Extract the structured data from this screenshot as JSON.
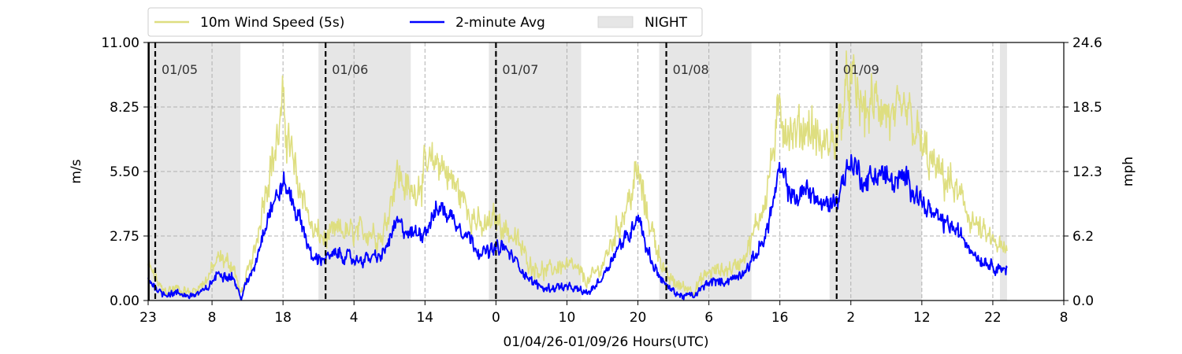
{
  "chart_data": {
    "type": "line",
    "title": "",
    "xlabel": "01/04/26-01/09/26  Hours(UTC)",
    "ylabel_left": "m/s",
    "ylabel_right": "mph",
    "ylim": [
      0,
      11
    ],
    "y_ticks_left": [
      "0.00",
      "2.75",
      "5.50",
      "8.25",
      "11.00"
    ],
    "y_ticks_right": [
      "0.0",
      "6.2",
      "12.3",
      "18.5",
      "24.6"
    ],
    "x_start": "01/04 23:00 UTC",
    "x_end": "01/10 08:00 UTC",
    "x_ticks": [
      {
        "label": "23",
        "time": "01/04 23:00"
      },
      {
        "label": "8",
        "time": "01/05 08:00"
      },
      {
        "label": "18",
        "time": "01/05 18:00"
      },
      {
        "label": "4",
        "time": "01/06 04:00"
      },
      {
        "label": "14",
        "time": "01/06 14:00"
      },
      {
        "label": "0",
        "time": "01/07 00:00"
      },
      {
        "label": "10",
        "time": "01/07 10:00"
      },
      {
        "label": "20",
        "time": "01/07 20:00"
      },
      {
        "label": "6",
        "time": "01/08 06:00"
      },
      {
        "label": "16",
        "time": "01/08 16:00"
      },
      {
        "label": "2",
        "time": "01/09 02:00"
      },
      {
        "label": "12",
        "time": "01/09 12:00"
      },
      {
        "label": "22",
        "time": "01/09 22:00"
      },
      {
        "label": "8",
        "time": "01/10 08:00"
      }
    ],
    "grid": true,
    "legend_position": "top",
    "legend": [
      {
        "label": "10m Wind Speed (5s)",
        "kind": "line",
        "color": "#dede80"
      },
      {
        "label": "2-minute Avg",
        "kind": "line",
        "color": "#0000ff"
      },
      {
        "label": "NIGHT",
        "kind": "patch",
        "color": "#e6e6e6"
      }
    ],
    "night_periods": [
      {
        "start": "01/04 23:00",
        "end": "01/05 12:00"
      },
      {
        "start": "01/05 23:00",
        "end": "01/06 12:00"
      },
      {
        "start": "01/06 23:00",
        "end": "01/07 12:00"
      },
      {
        "start": "01/07 23:00",
        "end": "01/08 12:00"
      },
      {
        "start": "01/08 23:00",
        "end": "01/09 12:00"
      },
      {
        "start": "01/09 23:00",
        "end": "01/10 00:00"
      }
    ],
    "day_markers": [
      {
        "label": "01/05",
        "time": "01/05 00:00"
      },
      {
        "label": "01/06",
        "time": "01/06 00:00"
      },
      {
        "label": "01/07",
        "time": "01/07 00:00"
      },
      {
        "label": "01/08",
        "time": "01/08 00:00"
      },
      {
        "label": "01/09",
        "time": "01/09 00:00"
      }
    ],
    "series": [
      {
        "name": "10m Wind Speed (5s)",
        "color": "#dede80",
        "points": [
          [
            "01/04 23:00",
            1.5
          ],
          [
            "01/05 01:00",
            0.4
          ],
          [
            "01/05 03:00",
            0.5
          ],
          [
            "01/05 05:00",
            0.3
          ],
          [
            "01/05 07:00",
            0.8
          ],
          [
            "01/05 09:00",
            1.8
          ],
          [
            "01/05 11:00",
            1.5
          ],
          [
            "01/05 12:00",
            0.2
          ],
          [
            "01/05 14:00",
            2.0
          ],
          [
            "01/05 15:00",
            4.0
          ],
          [
            "01/05 16:00",
            5.5
          ],
          [
            "01/05 17:00",
            6.5
          ],
          [
            "01/05 18:00",
            8.2
          ],
          [
            "01/05 19:00",
            6.5
          ],
          [
            "01/05 20:00",
            5.0
          ],
          [
            "01/05 21:00",
            4.5
          ],
          [
            "01/05 22:00",
            3.0
          ],
          [
            "01/06 00:00",
            2.6
          ],
          [
            "01/06 02:00",
            3.0
          ],
          [
            "01/06 04:00",
            2.8
          ],
          [
            "01/06 06:00",
            3.0
          ],
          [
            "01/06 08:00",
            2.7
          ],
          [
            "01/06 10:00",
            5.5
          ],
          [
            "01/06 12:00",
            4.5
          ],
          [
            "01/06 14:00",
            5.5
          ],
          [
            "01/06 16:00",
            6.0
          ],
          [
            "01/06 18:00",
            5.0
          ],
          [
            "01/06 20:00",
            4.0
          ],
          [
            "01/06 22:00",
            3.0
          ],
          [
            "01/07 00:00",
            3.5
          ],
          [
            "01/07 01:00",
            3.2
          ],
          [
            "01/07 03:00",
            2.5
          ],
          [
            "01/07 05:00",
            1.5
          ],
          [
            "01/07 07:00",
            1.2
          ],
          [
            "01/07 09:00",
            1.5
          ],
          [
            "01/07 11:00",
            1.4
          ],
          [
            "01/07 13:00",
            0.8
          ],
          [
            "01/07 15:00",
            1.5
          ],
          [
            "01/07 17:00",
            3.0
          ],
          [
            "01/07 19:00",
            4.5
          ],
          [
            "01/07 20:00",
            5.5
          ],
          [
            "01/07 21:00",
            4.0
          ],
          [
            "01/07 22:00",
            3.0
          ],
          [
            "01/08 00:00",
            1.0
          ],
          [
            "01/08 02:00",
            0.6
          ],
          [
            "01/08 04:00",
            0.5
          ],
          [
            "01/08 06:00",
            1.2
          ],
          [
            "01/08 08:00",
            1.3
          ],
          [
            "01/08 10:00",
            1.5
          ],
          [
            "01/08 12:00",
            2.5
          ],
          [
            "01/08 14:00",
            4.5
          ],
          [
            "01/08 16:00",
            8.0
          ],
          [
            "01/08 18:00",
            7.0
          ],
          [
            "01/08 20:00",
            7.5
          ],
          [
            "01/08 22:00",
            6.5
          ],
          [
            "01/09 00:00",
            7.0
          ],
          [
            "01/09 01:00",
            8.5
          ],
          [
            "01/09 02:00",
            9.3
          ],
          [
            "01/09 04:00",
            8.0
          ],
          [
            "01/09 06:00",
            8.5
          ],
          [
            "01/09 08:00",
            7.5
          ],
          [
            "01/09 10:00",
            8.0
          ],
          [
            "01/09 12:00",
            6.5
          ],
          [
            "01/09 14:00",
            5.5
          ],
          [
            "01/09 16:00",
            5.0
          ],
          [
            "01/09 18:00",
            4.0
          ],
          [
            "01/09 20:00",
            3.0
          ],
          [
            "01/09 22:00",
            2.5
          ],
          [
            "01/10 00:00",
            2.0
          ]
        ]
      },
      {
        "name": "2-minute Avg",
        "color": "#0000ff",
        "points": [
          [
            "01/04 23:00",
            0.9
          ],
          [
            "01/05 01:00",
            0.3
          ],
          [
            "01/05 03:00",
            0.3
          ],
          [
            "01/05 05:00",
            0.2
          ],
          [
            "01/05 07:00",
            0.4
          ],
          [
            "01/05 09:00",
            1.2
          ],
          [
            "01/05 11:00",
            1.0
          ],
          [
            "01/05 12:00",
            0.1
          ],
          [
            "01/05 14:00",
            1.5
          ],
          [
            "01/05 15:00",
            2.7
          ],
          [
            "01/05 16:00",
            3.8
          ],
          [
            "01/05 17:00",
            4.3
          ],
          [
            "01/05 18:00",
            5.0
          ],
          [
            "01/05 19:00",
            4.5
          ],
          [
            "01/05 20:00",
            3.7
          ],
          [
            "01/05 21:00",
            3.0
          ],
          [
            "01/05 22:00",
            1.8
          ],
          [
            "01/06 00:00",
            1.8
          ],
          [
            "01/06 02:00",
            2.0
          ],
          [
            "01/06 04:00",
            1.7
          ],
          [
            "01/06 06:00",
            1.8
          ],
          [
            "01/06 08:00",
            1.9
          ],
          [
            "01/06 10:00",
            3.3
          ],
          [
            "01/06 12:00",
            2.8
          ],
          [
            "01/06 14:00",
            3.0
          ],
          [
            "01/06 16:00",
            4.0
          ],
          [
            "01/06 18:00",
            3.5
          ],
          [
            "01/06 20:00",
            2.8
          ],
          [
            "01/06 22:00",
            2.0
          ],
          [
            "01/07 00:00",
            2.2
          ],
          [
            "01/07 01:00",
            2.3
          ],
          [
            "01/07 03:00",
            1.6
          ],
          [
            "01/07 05:00",
            0.8
          ],
          [
            "01/07 07:00",
            0.5
          ],
          [
            "01/07 09:00",
            0.6
          ],
          [
            "01/07 11:00",
            0.5
          ],
          [
            "01/07 13:00",
            0.3
          ],
          [
            "01/07 15:00",
            1.0
          ],
          [
            "01/07 17:00",
            2.2
          ],
          [
            "01/07 19:00",
            2.9
          ],
          [
            "01/07 20:00",
            3.8
          ],
          [
            "01/07 21:00",
            2.5
          ],
          [
            "01/07 22:00",
            1.6
          ],
          [
            "01/08 00:00",
            0.6
          ],
          [
            "01/08 02:00",
            0.2
          ],
          [
            "01/08 04:00",
            0.2
          ],
          [
            "01/08 06:00",
            0.8
          ],
          [
            "01/08 08:00",
            0.8
          ],
          [
            "01/08 10:00",
            1.0
          ],
          [
            "01/08 12:00",
            1.6
          ],
          [
            "01/08 14:00",
            2.8
          ],
          [
            "01/08 16:00",
            5.5
          ],
          [
            "01/08 18:00",
            4.3
          ],
          [
            "01/08 20:00",
            4.8
          ],
          [
            "01/08 22:00",
            4.0
          ],
          [
            "01/09 00:00",
            4.3
          ],
          [
            "01/09 01:00",
            5.2
          ],
          [
            "01/09 02:00",
            6.0
          ],
          [
            "01/09 04:00",
            5.0
          ],
          [
            "01/09 06:00",
            5.5
          ],
          [
            "01/09 08:00",
            5.0
          ],
          [
            "01/09 10:00",
            5.2
          ],
          [
            "01/09 12:00",
            4.2
          ],
          [
            "01/09 14:00",
            3.5
          ],
          [
            "01/09 16:00",
            3.2
          ],
          [
            "01/09 18:00",
            2.6
          ],
          [
            "01/09 20:00",
            1.8
          ],
          [
            "01/09 22:00",
            1.5
          ],
          [
            "01/10 00:00",
            1.3
          ]
        ]
      }
    ]
  }
}
